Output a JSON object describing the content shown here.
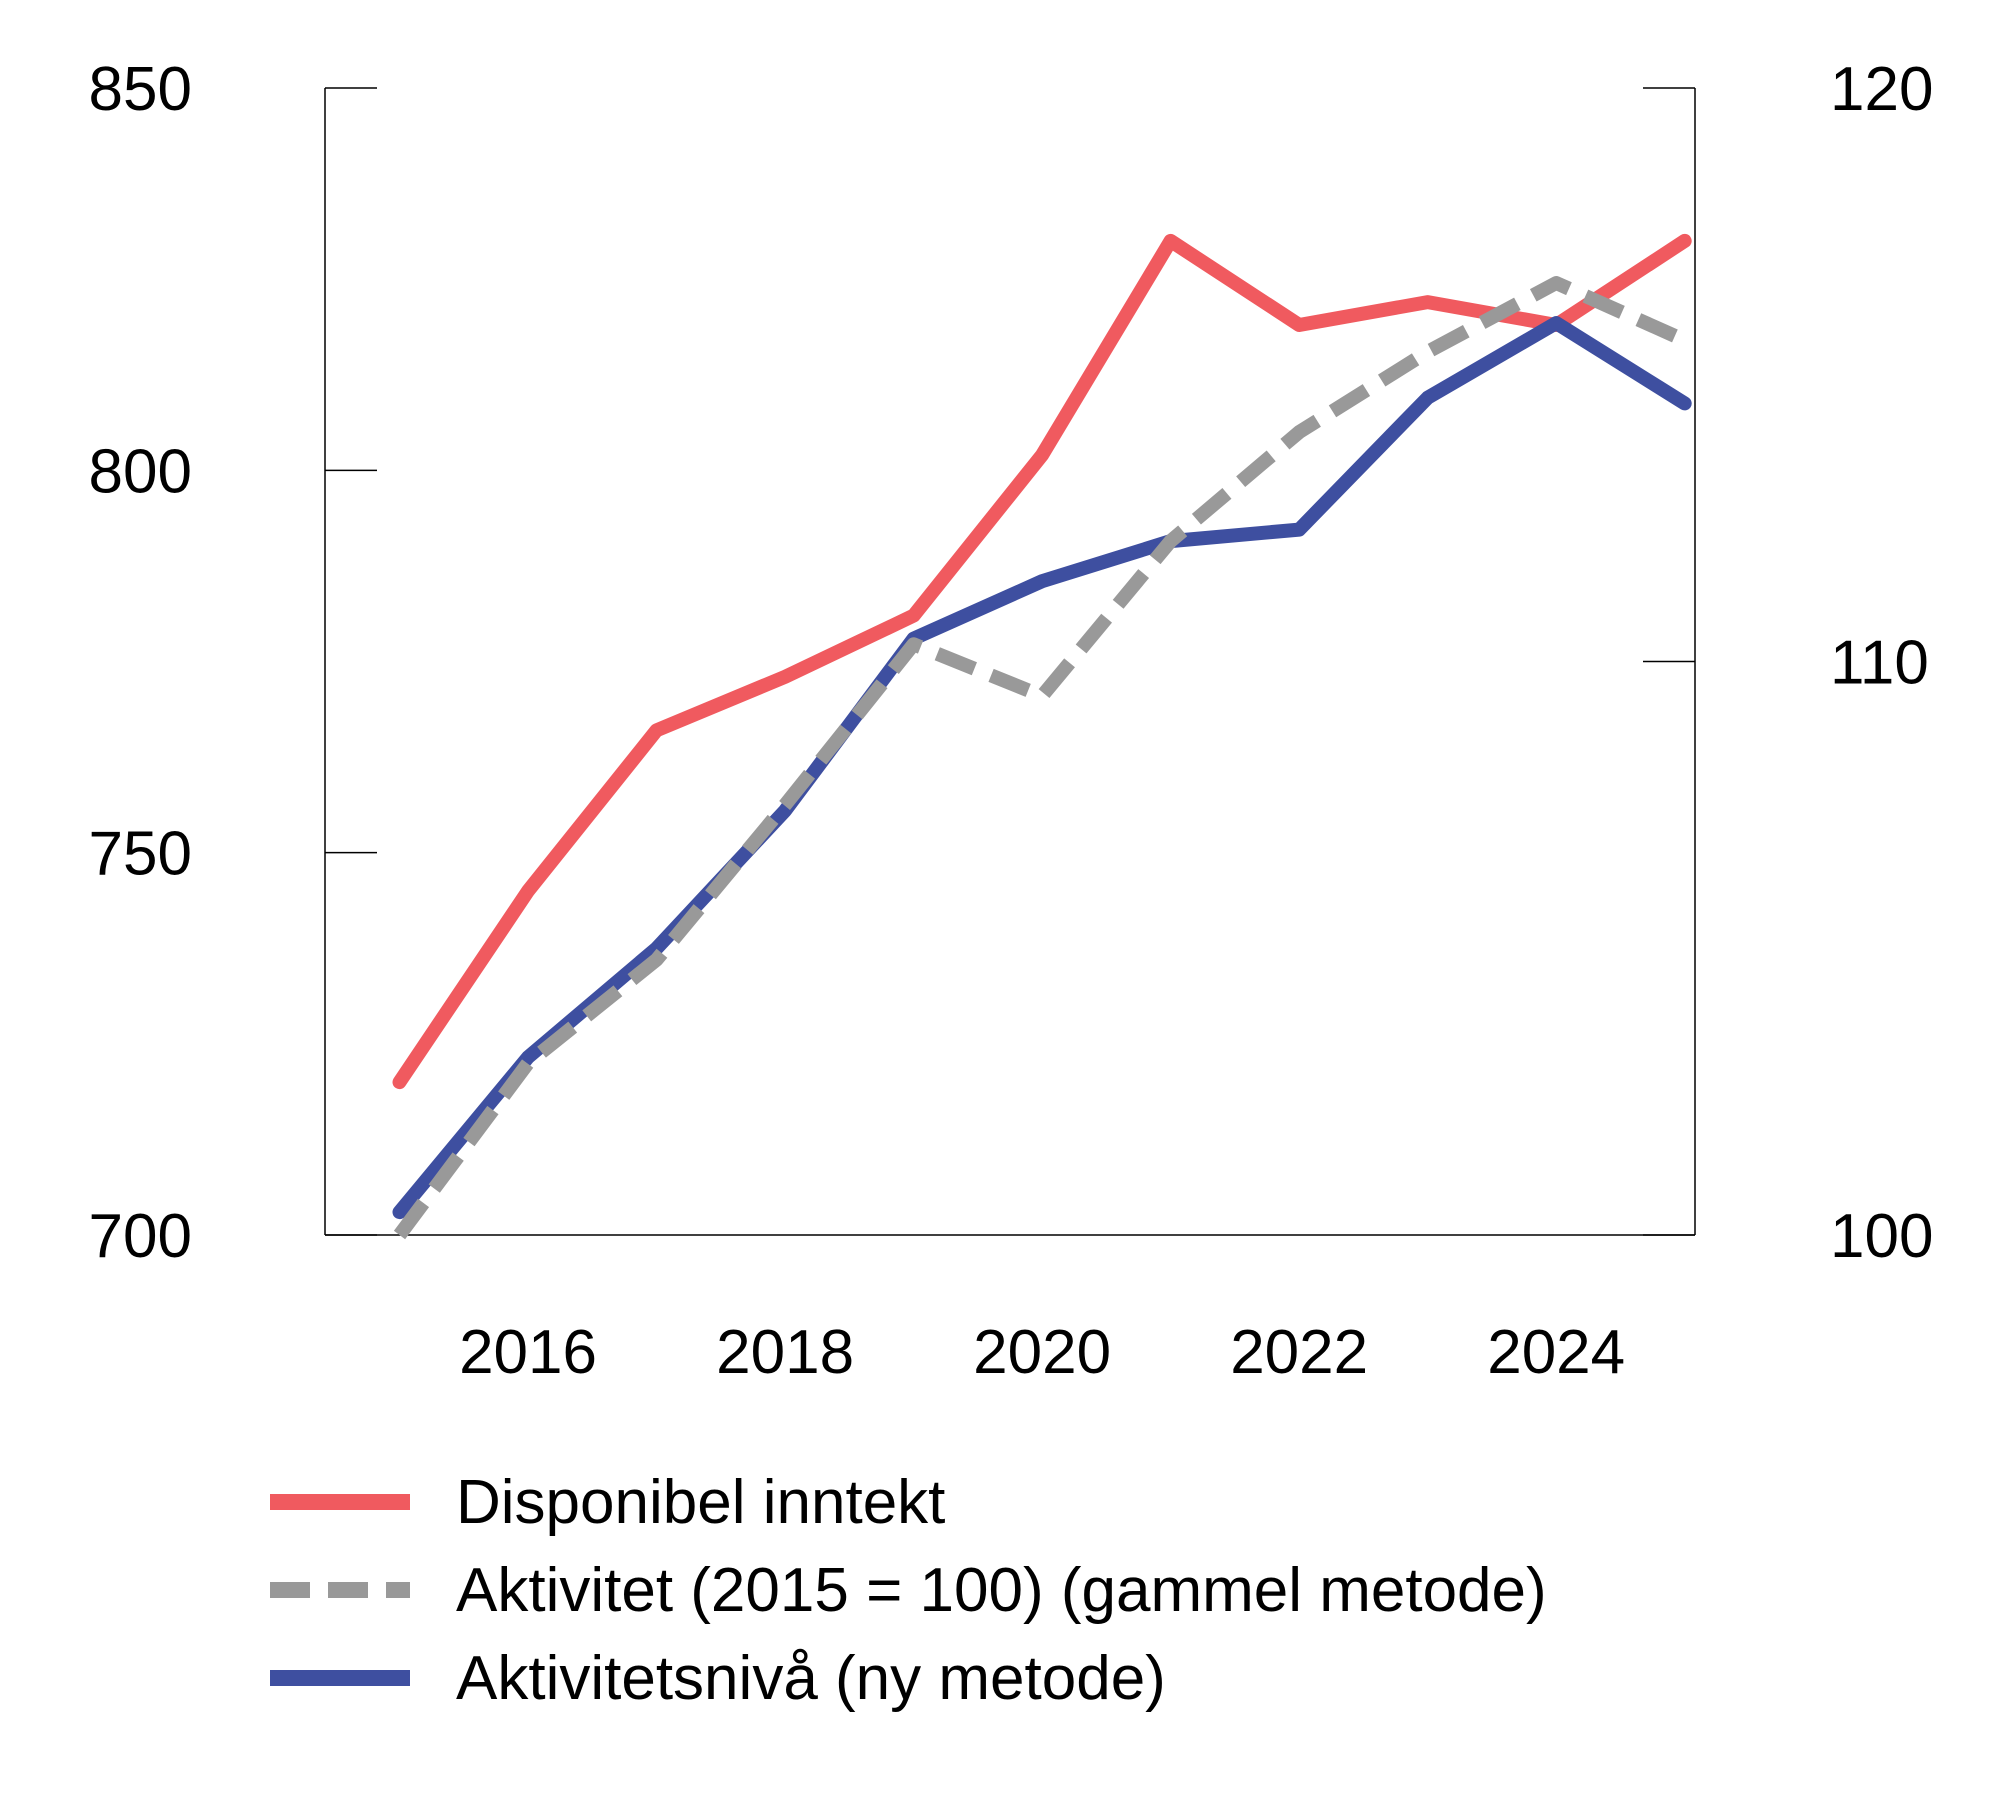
{
  "chart_data": {
    "type": "line",
    "title": "",
    "x": [
      2015,
      2016,
      2017,
      2018,
      2019,
      2020,
      2021,
      2022,
      2023,
      2024,
      2025
    ],
    "x_ticks": [
      "2016",
      "2018",
      "2020",
      "2022",
      "2024"
    ],
    "left_axis": {
      "ylim": [
        700,
        850
      ],
      "ticks": [
        "700",
        "750",
        "800",
        "850"
      ]
    },
    "right_axis": {
      "ylim": [
        100,
        120
      ],
      "ticks": [
        "100",
        "110",
        "120"
      ]
    },
    "series": [
      {
        "name": "Disponibel inntekt",
        "axis": "left",
        "style": "solid",
        "color": "#f05a5f",
        "values": [
          720,
          745,
          766,
          773,
          781,
          802,
          830,
          819,
          822,
          819,
          830
        ]
      },
      {
        "name": "Aktivitet (2015 = 100) (gammel metode)",
        "axis": "right",
        "style": "dashed",
        "color": "#999999",
        "values": [
          100.0,
          103.0,
          104.8,
          107.5,
          110.3,
          109.4,
          112.1,
          114.0,
          115.4,
          116.6,
          115.6
        ]
      },
      {
        "name": "Aktivitetsnivå (ny metode)",
        "axis": "right",
        "style": "solid",
        "color": "#3e4fa0",
        "values": [
          100.4,
          103.1,
          105.0,
          107.4,
          110.4,
          111.4,
          112.1,
          112.3,
          114.6,
          115.9,
          114.5
        ]
      }
    ],
    "grid": false,
    "legend_position": "bottom"
  }
}
